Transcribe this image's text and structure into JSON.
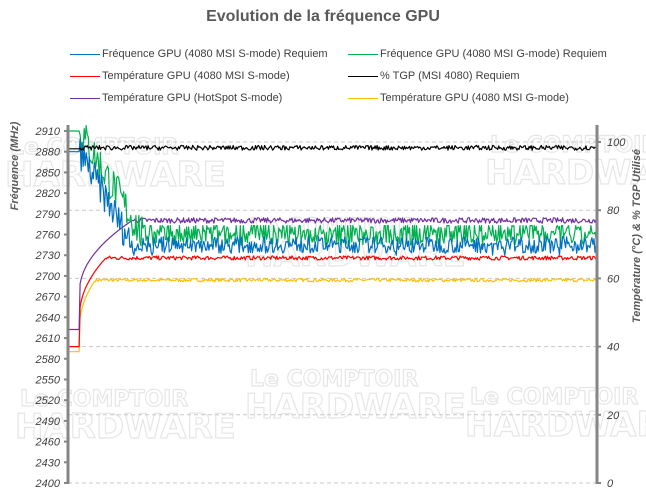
{
  "chart_data": {
    "type": "line",
    "title": "Evolution de la fréquence GPU",
    "xlabel": "",
    "ylabel": "Fréquence (MHz)",
    "ylabel_right": "Température (°C) & % TGP Utilisé",
    "ylim": [
      2400,
      2910
    ],
    "ylim_right": [
      0,
      100
    ],
    "yticks": [
      2400,
      2430,
      2460,
      2490,
      2520,
      2550,
      2580,
      2610,
      2640,
      2670,
      2700,
      2730,
      2760,
      2790,
      2820,
      2850,
      2880,
      2910
    ],
    "yticks_right": [
      0,
      20,
      40,
      60,
      80,
      100
    ],
    "grid": "horizontal dashed at right-axis ticks",
    "legend_position": "top",
    "x_ticks": "none",
    "series": [
      {
        "name": "Fréquence GPU (4080 MSI S-mode) Requiem",
        "color": "#0070C0",
        "axis": "left",
        "start": 2880,
        "transition_end": 0.12,
        "steady": 2745,
        "noise": 12,
        "dips": true
      },
      {
        "name": "Fréquence GPU (4080 MSI G-mode) Requiem",
        "color": "#00B050",
        "axis": "left",
        "start": 2910,
        "transition_end": 0.14,
        "steady": 2758,
        "noise": 14,
        "spikes": true
      },
      {
        "name": "Température GPU (4080 MSI S-mode)",
        "color": "#FF0000",
        "axis": "right",
        "start": 40,
        "transition_end": 0.07,
        "steady": 66,
        "noise": 0.6
      },
      {
        "name": "% TGP (MSI 4080) Requiem",
        "color": "#000000",
        "axis": "right",
        "start": 98,
        "transition_end": 0.02,
        "steady": 98.3,
        "noise": 0.7
      },
      {
        "name": "Température GPU (HotSpot S-mode)",
        "color": "#7030A0",
        "axis": "right",
        "start": 45,
        "transition_end": 0.12,
        "steady": 77,
        "noise": 0.8
      },
      {
        "name": "Température GPU (4080 MSI G-mode)",
        "color": "#FFC000",
        "axis": "right",
        "start": 38.5,
        "transition_end": 0.05,
        "steady": 59.5,
        "noise": 0.5
      }
    ]
  },
  "legend": [
    {
      "label": "Fréquence GPU (4080 MSI S-mode) Requiem",
      "color": "#0070C0"
    },
    {
      "label": "Fréquence GPU (4080 MSI G-mode) Requiem",
      "color": "#00B050"
    },
    {
      "label": "Température GPU (4080 MSI S-mode)",
      "color": "#FF0000"
    },
    {
      "label": "% TGP (MSI 4080) Requiem",
      "color": "#000000"
    },
    {
      "label": "Température GPU (HotSpot S-mode)",
      "color": "#7030A0"
    },
    {
      "label": "Température GPU (4080 MSI G-mode)",
      "color": "#FFC000"
    }
  ],
  "watermark": {
    "line1": "Le COMPTOIR",
    "line2": "du HARDWARE"
  }
}
